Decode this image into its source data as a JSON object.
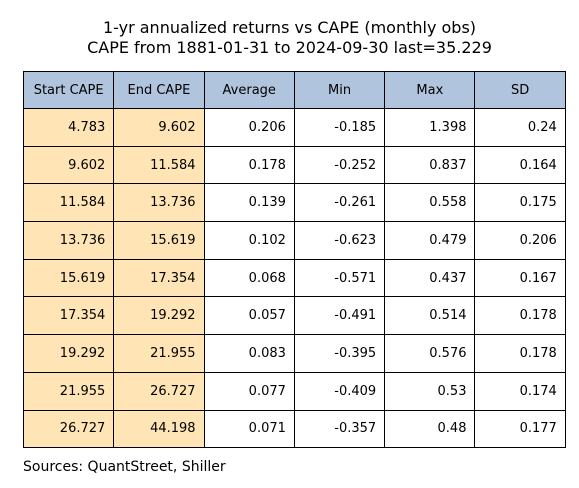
{
  "header": {
    "title_lines": [
      "1-yr annualized returns vs CAPE (monthly obs)",
      "CAPE from 1881-01-31 to 2024-09-30 last=35.229"
    ]
  },
  "table": {
    "columns": [
      "Start CAPE",
      "End CAPE",
      "Average",
      "Min",
      "Max",
      "SD"
    ],
    "rows": [
      [
        4.783,
        9.602,
        0.206,
        -0.185,
        1.398,
        0.24
      ],
      [
        9.602,
        11.584,
        0.178,
        -0.252,
        0.837,
        0.164
      ],
      [
        11.584,
        13.736,
        0.139,
        -0.261,
        0.558,
        0.175
      ],
      [
        13.736,
        15.619,
        0.102,
        -0.623,
        0.479,
        0.206
      ],
      [
        15.619,
        17.354,
        0.068,
        -0.571,
        0.437,
        0.167
      ],
      [
        17.354,
        19.292,
        0.057,
        -0.491,
        0.514,
        0.178
      ],
      [
        19.292,
        21.955,
        0.083,
        -0.395,
        0.576,
        0.178
      ],
      [
        21.955,
        26.727,
        0.077,
        -0.409,
        0.53,
        0.174
      ],
      [
        26.727,
        44.198,
        0.071,
        -0.357,
        0.48,
        0.177
      ]
    ]
  },
  "footer": {
    "source": "Sources: QuantStreet, Shiller"
  }
}
